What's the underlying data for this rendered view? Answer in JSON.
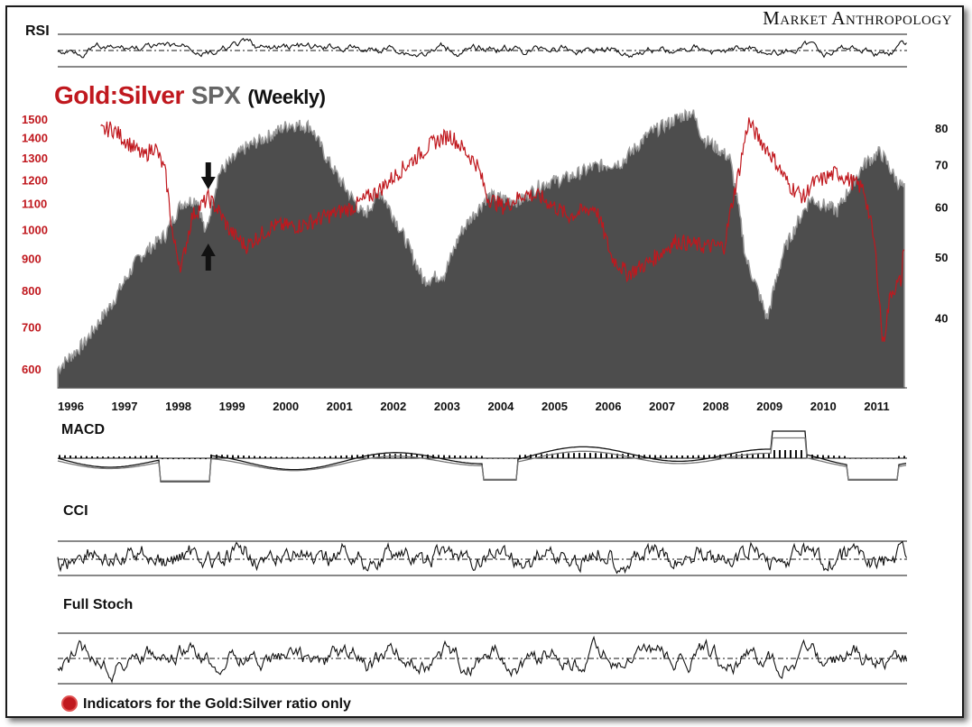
{
  "brand": "Market Anthropology",
  "title": {
    "gold_silver": "Gold:Silver",
    "spx": "SPX",
    "period": "(Weekly)"
  },
  "panels": {
    "rsi": "RSI",
    "macd": "MACD",
    "cci": "CCI",
    "stoch": "Full Stoch"
  },
  "footnote": "Indicators for the Gold:Silver ratio only",
  "colors": {
    "gold_silver": "#c0181e",
    "spx_area": "#4d4d4d",
    "spx_edge": "#9a9a9a",
    "indicator": "#111111"
  },
  "chart_data": {
    "type": "area",
    "x_ticks": [
      "1996",
      "1997",
      "1998",
      "1999",
      "2000",
      "2001",
      "2002",
      "2003",
      "2004",
      "2005",
      "2006",
      "2007",
      "2008",
      "2009",
      "2010",
      "2011"
    ],
    "left_axis": {
      "ticks": [
        "1500",
        "1400",
        "1300",
        "1200",
        "1100",
        "1000",
        "900",
        "800",
        "700",
        "600"
      ],
      "scale": "log"
    },
    "right_axis": {
      "ticks": [
        "80",
        "70",
        "60",
        "50",
        "40"
      ],
      "scale": "log"
    },
    "series": [
      {
        "name": "SPX",
        "style": "area",
        "axis": "left",
        "x": [
          1996.0,
          1996.5,
          1997.0,
          1997.5,
          1998.0,
          1998.3,
          1998.6,
          1998.75,
          1999.0,
          1999.5,
          2000.0,
          2000.3,
          2000.7,
          2001.0,
          2001.3,
          2001.7,
          2002.0,
          2002.5,
          2002.8,
          2003.2,
          2003.5,
          2004.0,
          2004.6,
          2005.0,
          2005.5,
          2006.0,
          2006.5,
          2007.0,
          2007.5,
          2007.8,
          2008.0,
          2008.5,
          2008.8,
          2009.2,
          2009.5,
          2010.0,
          2010.5,
          2011.0,
          2011.3,
          2011.6,
          2011.75
        ],
        "values": [
          600,
          660,
          760,
          900,
          980,
          1100,
          1120,
          980,
          1230,
          1350,
          1420,
          1470,
          1460,
          1300,
          1180,
          1050,
          1150,
          950,
          830,
          850,
          990,
          1130,
          1110,
          1180,
          1210,
          1260,
          1280,
          1420,
          1500,
          1540,
          1400,
          1300,
          900,
          720,
          920,
          1120,
          1070,
          1270,
          1330,
          1200,
          1160
        ]
      },
      {
        "name": "Gold:Silver",
        "style": "line",
        "axis": "right",
        "x": [
          1996.8,
          1997.0,
          1997.3,
          1997.6,
          1997.8,
          1998.0,
          1998.15,
          1998.3,
          1998.5,
          1998.8,
          1999.0,
          1999.2,
          1999.5,
          2000.0,
          2000.5,
          2001.0,
          2001.5,
          2002.0,
          2002.5,
          2003.0,
          2003.3,
          2003.8,
          2004.0,
          2004.3,
          2004.7,
          2005.0,
          2005.5,
          2006.0,
          2006.3,
          2006.6,
          2007.0,
          2007.5,
          2008.0,
          2008.4,
          2008.7,
          2008.85,
          2009.0,
          2009.3,
          2009.6,
          2009.9,
          2010.0,
          2010.5,
          2011.0,
          2011.2,
          2011.35,
          2011.5,
          2011.7,
          2011.75
        ],
        "values": [
          79,
          80,
          76,
          72,
          75,
          68,
          53,
          48,
          58,
          62,
          59,
          55,
          52,
          56,
          56,
          58,
          60,
          64,
          70,
          76,
          78,
          70,
          62,
          60,
          63,
          62,
          58,
          60,
          50,
          47,
          49,
          53,
          52,
          52,
          70,
          82,
          78,
          72,
          65,
          62,
          65,
          68,
          64,
          52,
          36,
          44,
          46,
          54
        ]
      }
    ],
    "annotations": [
      "down-arrow 1998.8",
      "up-arrow 1998.8"
    ]
  }
}
